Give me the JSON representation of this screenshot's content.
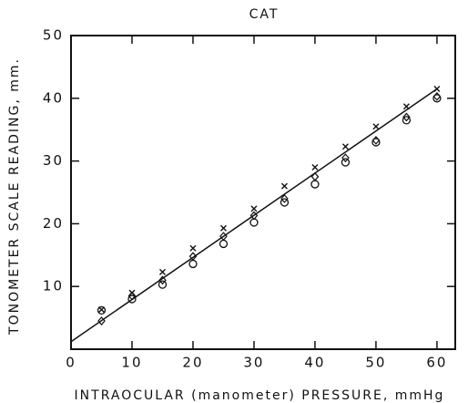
{
  "chart_data": {
    "type": "scatter",
    "title": "CAT",
    "x_label": "INTRAOCULAR (manometer) PRESSURE, mmHg",
    "y_label": "TONOMETER SCALE READING, mm.",
    "x": [
      5,
      10,
      15,
      20,
      25,
      30,
      35,
      40,
      45,
      50,
      55,
      60
    ],
    "series": [
      {
        "marker": "x",
        "color": "#111111",
        "values": [
          6.3,
          9,
          12.3,
          16.1,
          19.3,
          22.4,
          26,
          29,
          32.3,
          35.5,
          38.7,
          41.5
        ]
      },
      {
        "marker": "diamond",
        "color": "#111111",
        "values": [
          4.5,
          8.5,
          11,
          14.8,
          18,
          21.3,
          24,
          27.5,
          30.5,
          33.3,
          37,
          40.3
        ]
      },
      {
        "marker": "circle",
        "color": "#111111",
        "values": [
          6.2,
          8,
          10.3,
          13.6,
          16.8,
          20.2,
          23.4,
          26.3,
          29.8,
          33,
          36.5,
          40
        ]
      },
      {
        "marker": "line",
        "color": "#111111",
        "x": [
          0,
          60
        ],
        "values": [
          1.2,
          41.5
        ]
      }
    ],
    "xlim": [
      0,
      63
    ],
    "ylim": [
      0,
      50
    ],
    "xticks": [
      0,
      10,
      20,
      30,
      40,
      50,
      60
    ],
    "yticks": [
      10,
      20,
      30,
      40,
      50
    ],
    "grid": false
  }
}
